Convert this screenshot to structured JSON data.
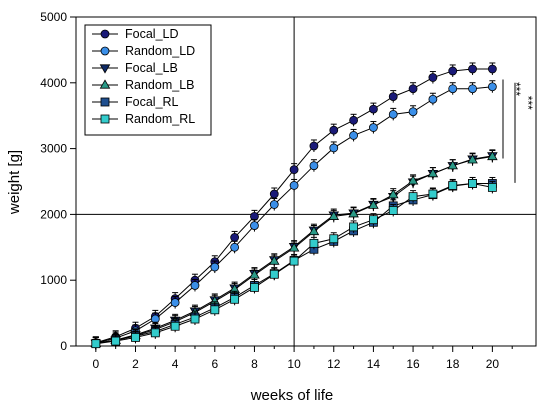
{
  "chart_data": {
    "type": "line",
    "xlabel": "weeks of life",
    "ylabel": "weight [g]",
    "xlim": [
      -1,
      22.2
    ],
    "ylim": [
      0,
      5000
    ],
    "x_ticks": [
      0,
      2,
      4,
      6,
      8,
      10,
      12,
      14,
      16,
      18,
      20
    ],
    "y_ticks": [
      0,
      1000,
      2000,
      3000,
      4000,
      5000
    ],
    "reference_lines": {
      "x": 10,
      "y": 2000
    },
    "legend_position": "top-left",
    "significance": [
      {
        "label": "***",
        "y_range": [
          2850,
          4050
        ]
      },
      {
        "label": "***",
        "y_range": [
          2480,
          4000
        ]
      }
    ],
    "x": [
      0,
      1,
      2,
      3,
      4,
      5,
      6,
      7,
      8,
      9,
      10,
      11,
      12,
      13,
      14,
      15,
      16,
      17,
      18,
      19,
      20
    ],
    "series": [
      {
        "name": "Focal_LD",
        "marker": "circle",
        "color": "#1a1a78",
        "values": [
          50,
          140,
          270,
          450,
          720,
          1000,
          1280,
          1650,
          1970,
          2310,
          2680,
          3040,
          3280,
          3430,
          3600,
          3790,
          3910,
          4080,
          4180,
          4210,
          4210
        ]
      },
      {
        "name": "Random_LD",
        "marker": "circle",
        "color": "#3b8fe8",
        "values": [
          45,
          120,
          230,
          410,
          660,
          920,
          1200,
          1500,
          1830,
          2150,
          2440,
          2740,
          3010,
          3200,
          3320,
          3520,
          3560,
          3750,
          3910,
          3910,
          3940
        ]
      },
      {
        "name": "Focal_LB",
        "marker": "triangle-down",
        "color": "#0f2a66",
        "values": [
          40,
          90,
          170,
          270,
          390,
          530,
          700,
          880,
          1100,
          1310,
          1510,
          1760,
          1990,
          2020,
          2150,
          2270,
          2490,
          2620,
          2740,
          2840,
          2890
        ]
      },
      {
        "name": "Random_LB",
        "marker": "triangle-up",
        "color": "#2a9a88",
        "values": [
          40,
          85,
          160,
          250,
          370,
          510,
          680,
          860,
          1080,
          1290,
          1490,
          1740,
          1970,
          2010,
          2140,
          2300,
          2510,
          2620,
          2740,
          2830,
          2880
        ]
      },
      {
        "name": "Focal_RL",
        "marker": "square",
        "color": "#1f4f8f",
        "values": [
          40,
          90,
          150,
          220,
          330,
          440,
          580,
          740,
          920,
          1100,
          1300,
          1470,
          1590,
          1750,
          1880,
          2130,
          2220,
          2300,
          2430,
          2470,
          2470
        ]
      },
      {
        "name": "Random_RL",
        "marker": "square",
        "color": "#33cccc",
        "values": [
          35,
          75,
          130,
          200,
          300,
          410,
          550,
          710,
          890,
          1090,
          1290,
          1560,
          1630,
          1810,
          1920,
          2060,
          2270,
          2310,
          2440,
          2470,
          2410
        ]
      }
    ]
  }
}
